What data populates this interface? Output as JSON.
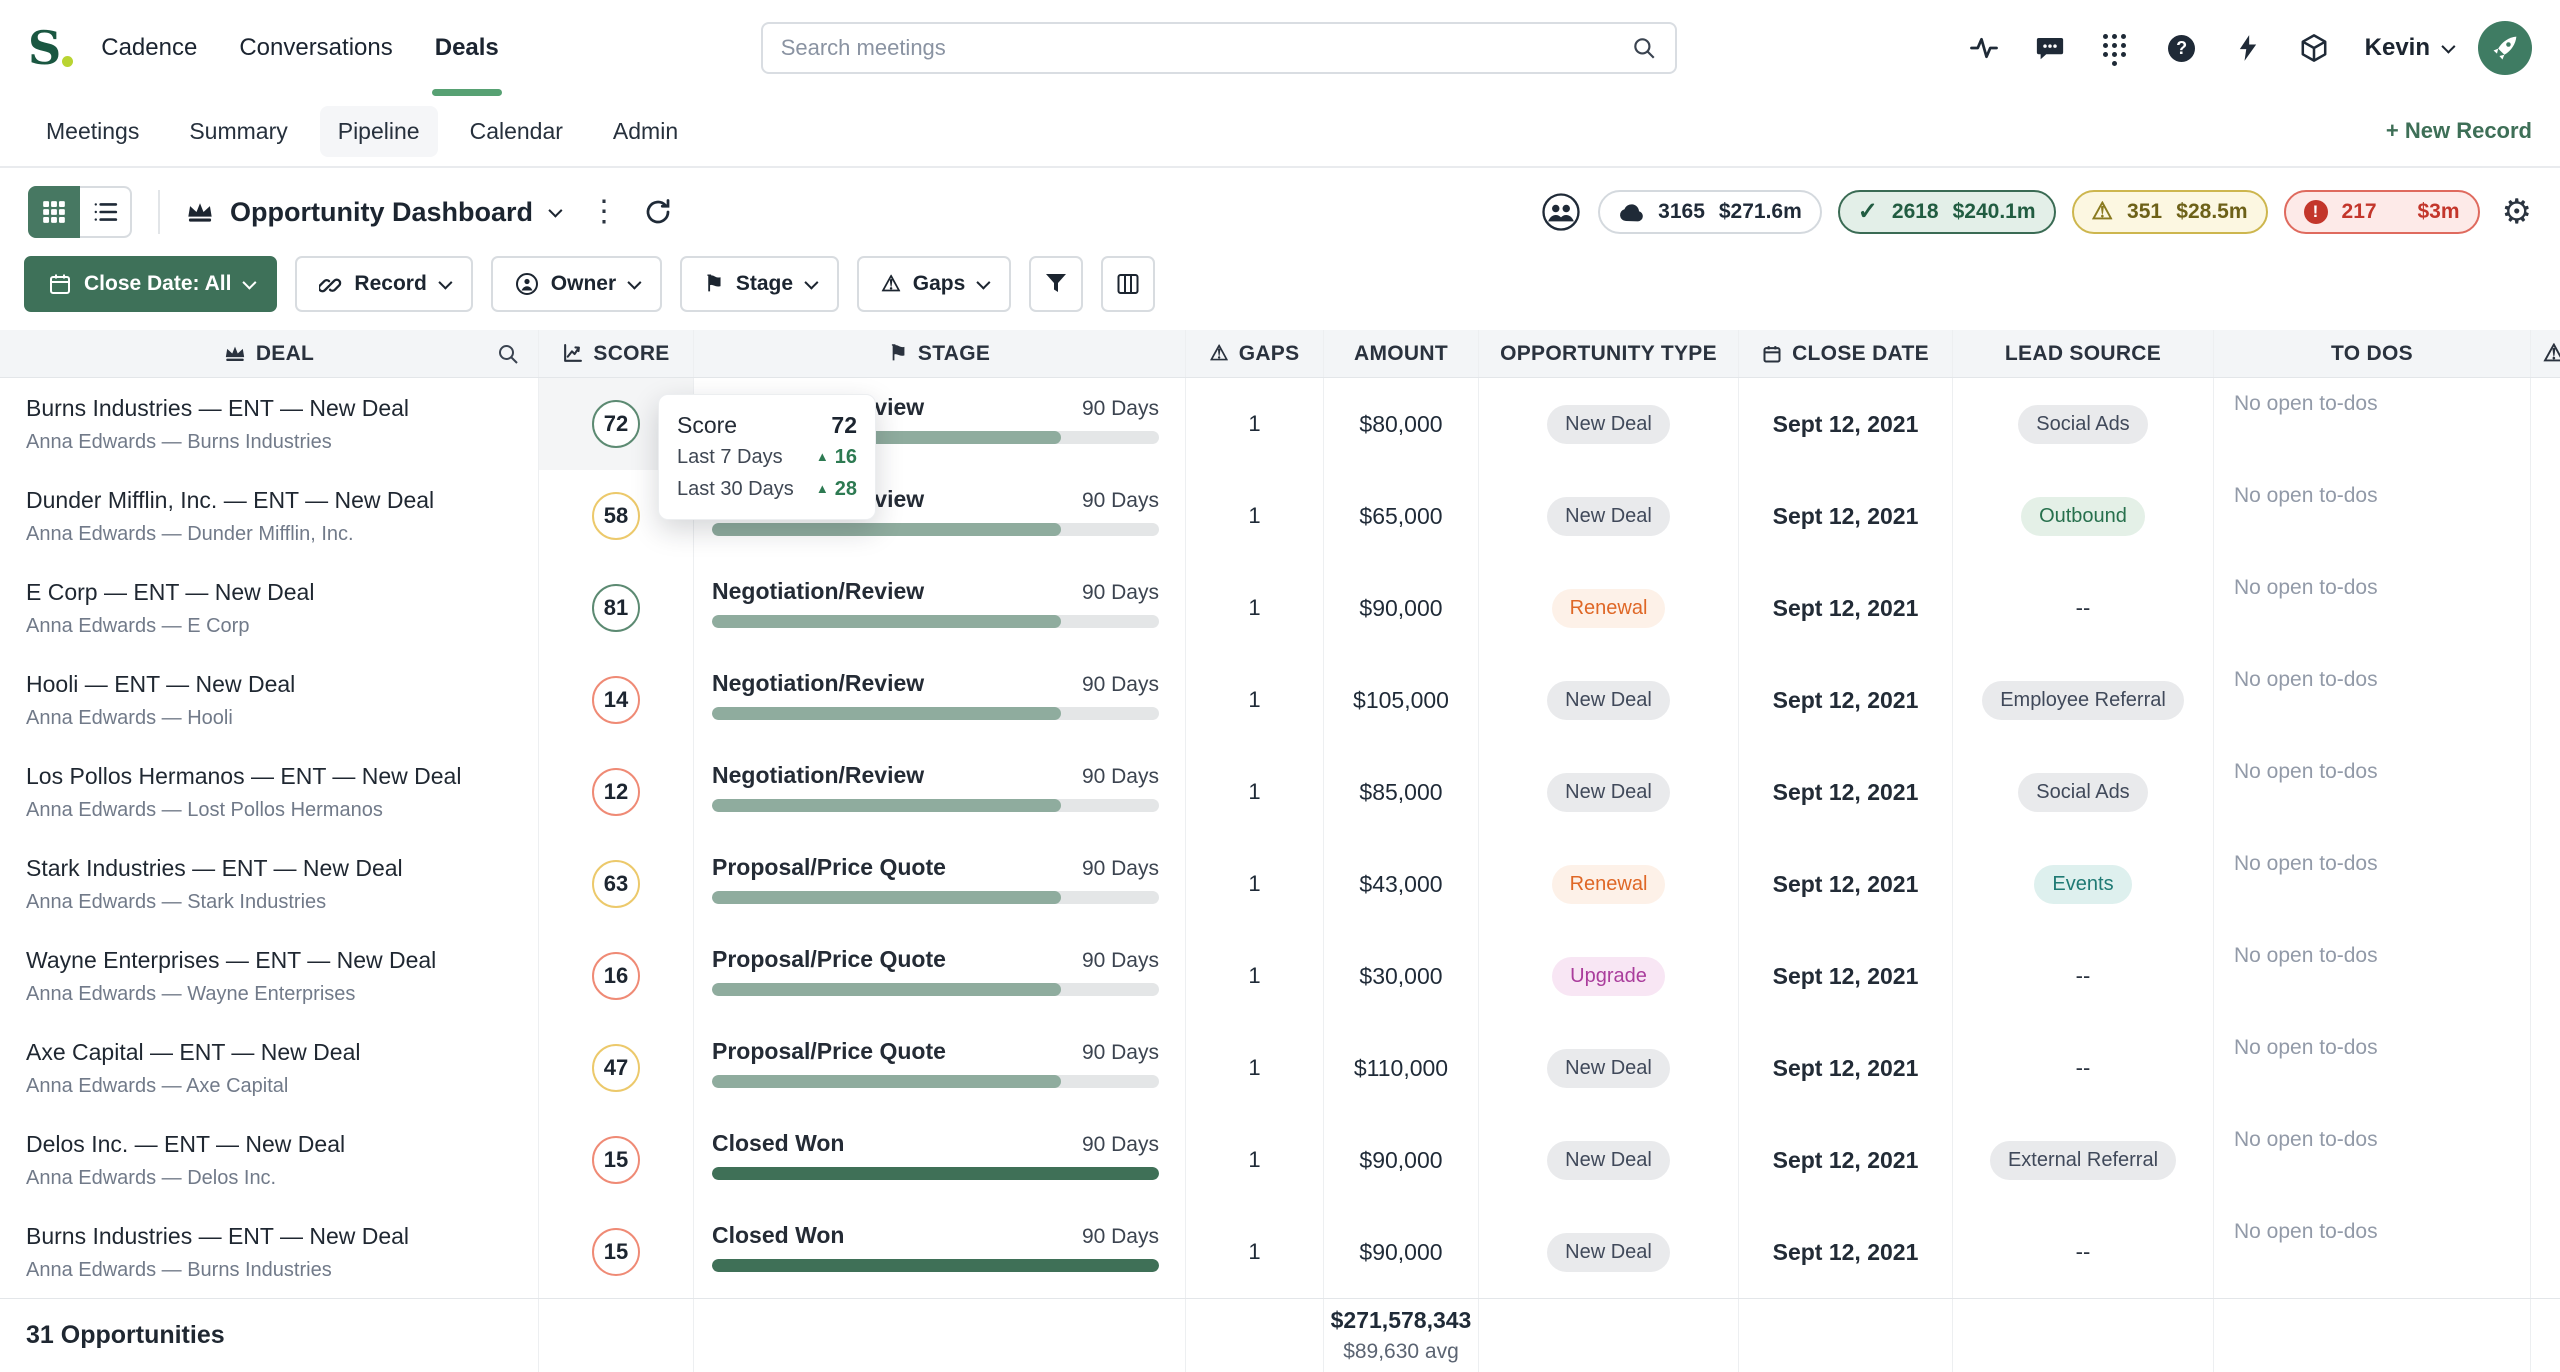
{
  "topbar": {
    "logo_letter": "S",
    "nav": [
      "Cadence",
      "Conversations",
      "Deals"
    ],
    "active_nav": "Deals",
    "search_placeholder": "Search meetings",
    "user_name": "Kevin"
  },
  "subnav": {
    "items": [
      "Meetings",
      "Summary",
      "Pipeline",
      "Calendar",
      "Admin"
    ],
    "active": "Pipeline",
    "new_record_label": "+ New Record"
  },
  "toolbar": {
    "view_title": "Opportunity Dashboard",
    "stats": [
      {
        "count": "3165",
        "amount": "$271.6m",
        "style": "neutral",
        "icon": "cloud-icon"
      },
      {
        "count": "2618",
        "amount": "$240.1m",
        "style": "success",
        "icon": "check-icon"
      },
      {
        "count": "351",
        "amount": "$28.5m",
        "style": "warning",
        "icon": "warning-icon"
      },
      {
        "count": "217",
        "amount": "$3m",
        "style": "danger",
        "icon": "alert-icon"
      }
    ]
  },
  "filters": {
    "close_date_label": "Close Date: All",
    "record_label": "Record",
    "owner_label": "Owner",
    "stage_label": "Stage",
    "gaps_label": "Gaps"
  },
  "icons": {
    "flag": "⚑",
    "warning": "⚠",
    "gear": "⚙",
    "kebab": "⋮",
    "check": "✓",
    "triangle_up": "▲"
  },
  "table": {
    "headers": {
      "deal": "DEAL",
      "score": "SCORE",
      "stage": "STAGE",
      "gaps": "GAPS",
      "amount": "AMOUNT",
      "opportunity_type": "OPPORTUNITY TYPE",
      "close_date": "CLOSE DATE",
      "lead_source": "LEAD SOURCE",
      "to_dos": "TO DOS"
    },
    "rows": [
      {
        "title": "Burns Industries — ENT — New Deal",
        "subtitle": "Anna Edwards — Burns Industries",
        "score": "72",
        "score_level": "good",
        "highlight": true,
        "stage": "Negotiation/Review",
        "duration": "90 Days",
        "progress": 78,
        "closed": false,
        "gaps": "1",
        "amount": "$80,000",
        "opportunity_type": {
          "text": "New Deal",
          "style": "gray"
        },
        "close_date": "Sept 12, 2021",
        "lead_source": {
          "text": "Social Ads",
          "style": "gray"
        },
        "to_dos": "No open to-dos"
      },
      {
        "title": "Dunder Mifflin, Inc. — ENT — New Deal",
        "subtitle": "Anna Edwards — Dunder Mifflin, Inc.",
        "score": "58",
        "score_level": "mid",
        "highlight": false,
        "stage": "Negotiation/Review",
        "duration": "90 Days",
        "progress": 78,
        "closed": false,
        "gaps": "1",
        "amount": "$65,000",
        "opportunity_type": {
          "text": "New Deal",
          "style": "gray"
        },
        "close_date": "Sept 12, 2021",
        "lead_source": {
          "text": "Outbound",
          "style": "green"
        },
        "to_dos": "No open to-dos"
      },
      {
        "title": "E Corp — ENT — New Deal",
        "subtitle": "Anna Edwards — E Corp",
        "score": "81",
        "score_level": "good",
        "highlight": false,
        "stage": "Negotiation/Review",
        "duration": "90 Days",
        "progress": 78,
        "closed": false,
        "gaps": "1",
        "amount": "$90,000",
        "opportunity_type": {
          "text": "Renewal",
          "style": "orange"
        },
        "close_date": "Sept 12, 2021",
        "lead_source": {
          "text": "--",
          "style": "none"
        },
        "to_dos": "No open to-dos"
      },
      {
        "title": "Hooli — ENT — New Deal",
        "subtitle": "Anna Edwards — Hooli",
        "score": "14",
        "score_level": "bad",
        "highlight": false,
        "stage": "Negotiation/Review",
        "duration": "90 Days",
        "progress": 78,
        "closed": false,
        "gaps": "1",
        "amount": "$105,000",
        "opportunity_type": {
          "text": "New Deal",
          "style": "gray"
        },
        "close_date": "Sept 12, 2021",
        "lead_source": {
          "text": "Employee Referral",
          "style": "gray"
        },
        "to_dos": "No open to-dos"
      },
      {
        "title": "Los Pollos Hermanos — ENT — New Deal",
        "subtitle": "Anna Edwards — Lost Pollos Hermanos",
        "score": "12",
        "score_level": "bad",
        "highlight": false,
        "stage": "Negotiation/Review",
        "duration": "90 Days",
        "progress": 78,
        "closed": false,
        "gaps": "1",
        "amount": "$85,000",
        "opportunity_type": {
          "text": "New Deal",
          "style": "gray"
        },
        "close_date": "Sept 12, 2021",
        "lead_source": {
          "text": "Social Ads",
          "style": "gray"
        },
        "to_dos": "No open to-dos"
      },
      {
        "title": "Stark Industries — ENT — New Deal",
        "subtitle": "Anna Edwards — Stark Industries",
        "score": "63",
        "score_level": "mid",
        "highlight": false,
        "stage": "Proposal/Price Quote",
        "duration": "90 Days",
        "progress": 78,
        "closed": false,
        "gaps": "1",
        "amount": "$43,000",
        "opportunity_type": {
          "text": "Renewal",
          "style": "orange"
        },
        "close_date": "Sept 12, 2021",
        "lead_source": {
          "text": "Events",
          "style": "teal"
        },
        "to_dos": "No open to-dos"
      },
      {
        "title": "Wayne Enterprises — ENT — New Deal",
        "subtitle": "Anna Edwards — Wayne Enterprises",
        "score": "16",
        "score_level": "bad",
        "highlight": false,
        "stage": "Proposal/Price Quote",
        "duration": "90 Days",
        "progress": 78,
        "closed": false,
        "gaps": "1",
        "amount": "$30,000",
        "opportunity_type": {
          "text": "Upgrade",
          "style": "pink"
        },
        "close_date": "Sept 12, 2021",
        "lead_source": {
          "text": "--",
          "style": "none"
        },
        "to_dos": "No open to-dos"
      },
      {
        "title": "Axe Capital — ENT — New Deal",
        "subtitle": "Anna Edwards — Axe Capital",
        "score": "47",
        "score_level": "mid",
        "highlight": false,
        "stage": "Proposal/Price Quote",
        "duration": "90 Days",
        "progress": 78,
        "closed": false,
        "gaps": "1",
        "amount": "$110,000",
        "opportunity_type": {
          "text": "New Deal",
          "style": "gray"
        },
        "close_date": "Sept 12, 2021",
        "lead_source": {
          "text": "--",
          "style": "none"
        },
        "to_dos": "No open to-dos"
      },
      {
        "title": "Delos Inc. — ENT — New Deal",
        "subtitle": "Anna Edwards — Delos Inc.",
        "score": "15",
        "score_level": "bad",
        "highlight": false,
        "stage": "Closed Won",
        "duration": "90 Days",
        "progress": 100,
        "closed": true,
        "gaps": "1",
        "amount": "$90,000",
        "opportunity_type": {
          "text": "New Deal",
          "style": "gray"
        },
        "close_date": "Sept 12, 2021",
        "lead_source": {
          "text": "External Referral",
          "style": "gray"
        },
        "to_dos": "No open to-dos"
      },
      {
        "title": "Burns Industries — ENT — New Deal",
        "subtitle": "Anna Edwards — Burns Industries",
        "score": "15",
        "score_level": "bad",
        "highlight": false,
        "stage": "Closed Won",
        "duration": "90 Days",
        "progress": 100,
        "closed": true,
        "gaps": "1",
        "amount": "$90,000",
        "opportunity_type": {
          "text": "New Deal",
          "style": "gray"
        },
        "close_date": "Sept 12, 2021",
        "lead_source": {
          "text": "--",
          "style": "none"
        },
        "to_dos": "No open to-dos"
      }
    ]
  },
  "score_tooltip": {
    "title": "Score",
    "value": "72",
    "rows": [
      {
        "label": "Last 7 Days",
        "delta": "16"
      },
      {
        "label": "Last 30 Days",
        "delta": "28"
      }
    ]
  },
  "footer": {
    "count_label": "31 Opportunities",
    "total_amount": "$271,578,343",
    "average": "$89,630 avg"
  }
}
